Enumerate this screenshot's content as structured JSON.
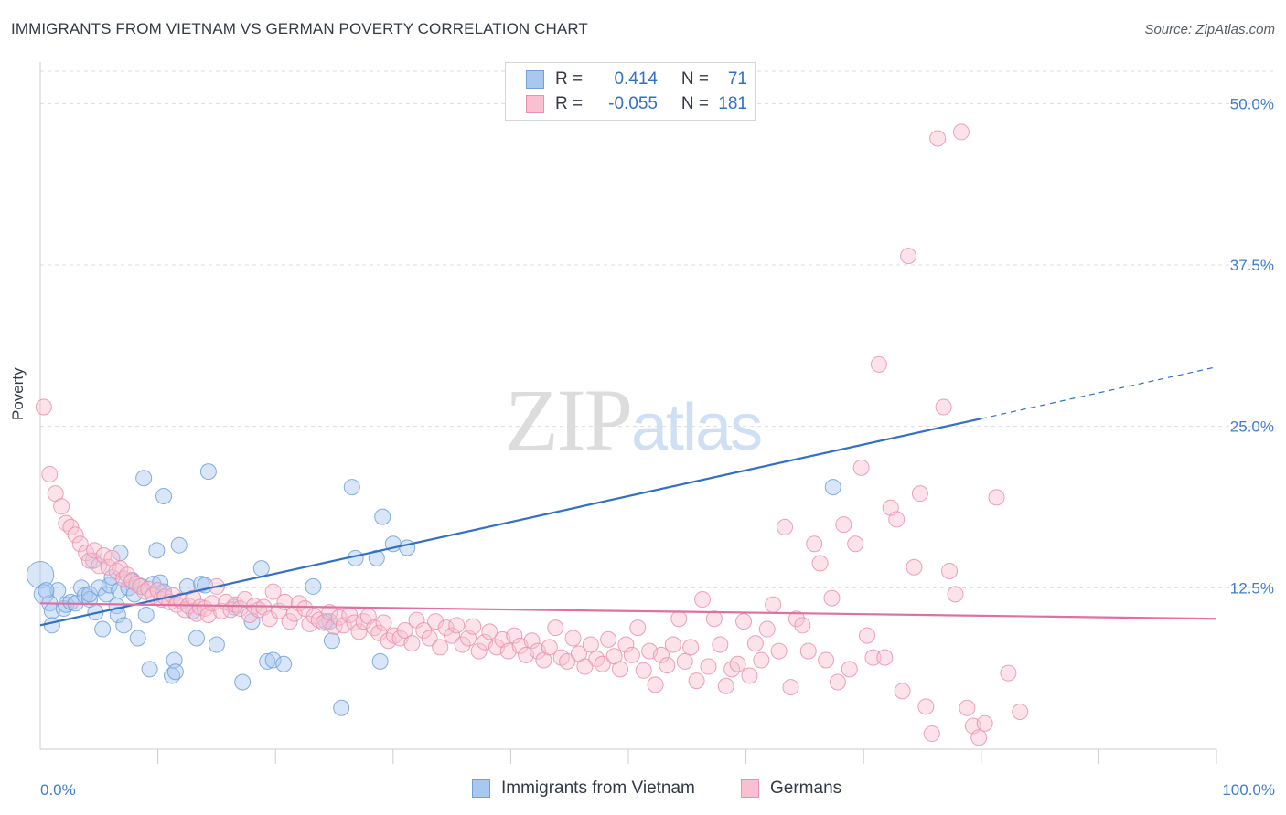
{
  "title": "IMMIGRANTS FROM VIETNAM VS GERMAN POVERTY CORRELATION CHART",
  "source": "Source: ZipAtlas.com",
  "watermark": {
    "zip": "ZIP",
    "atlas": "atlas"
  },
  "legend": {
    "rows": [
      {
        "r_label": "R =",
        "r_value": "0.414",
        "n_label": "N =",
        "n_value": "71",
        "color": "#a8c8f0",
        "border": "#6fa0dc"
      },
      {
        "r_label": "R =",
        "r_value": "-0.055",
        "n_label": "N =",
        "n_value": "181",
        "color": "#f8c0d0",
        "border": "#e890ae"
      }
    ]
  },
  "bottom_legend": [
    {
      "label": "Immigrants from Vietnam",
      "color": "#a8c8f0",
      "border": "#6fa0dc"
    },
    {
      "label": "Germans",
      "color": "#f8c0d0",
      "border": "#e890ae"
    }
  ],
  "chart_data": {
    "type": "scatter",
    "title": "IMMIGRANTS FROM VIETNAM VS GERMAN POVERTY CORRELATION CHART",
    "xlabel": "",
    "ylabel": "Poverty",
    "xlim": [
      0,
      100
    ],
    "ylim": [
      0,
      52.5
    ],
    "x_tick_labels": [
      {
        "value": 0,
        "label": "0.0%"
      },
      {
        "value": 100,
        "label": "100.0%"
      }
    ],
    "y_tick_labels": [
      {
        "value": 12.5,
        "label": "12.5%"
      },
      {
        "value": 25.0,
        "label": "25.0%"
      },
      {
        "value": 37.5,
        "label": "37.5%"
      },
      {
        "value": 50.0,
        "label": "50.0%"
      }
    ],
    "grid": "horizontal dashed",
    "series": [
      {
        "name": "Immigrants from Vietnam",
        "color": "#6fa0dc",
        "fill": "#a8c8f0",
        "trend": {
          "x0": 0,
          "y0": 9.6,
          "x1": 80,
          "y1": 25.6,
          "dashed_to_x": 100,
          "dashed_to_y": 29.6,
          "color": "#3070c8"
        },
        "points": [
          [
            0,
            13.5
          ],
          [
            0.3,
            12.0
          ],
          [
            0.8,
            11.3
          ],
          [
            1.0,
            10.7
          ],
          [
            1.5,
            12.3
          ],
          [
            2.0,
            10.9
          ],
          [
            2.2,
            11.2
          ],
          [
            2.6,
            11.4
          ],
          [
            3.0,
            11.3
          ],
          [
            3.5,
            12.5
          ],
          [
            3.8,
            11.9
          ],
          [
            4.2,
            11.6
          ],
          [
            4.2,
            12.0
          ],
          [
            4.5,
            14.6
          ],
          [
            4.7,
            10.6
          ],
          [
            5.0,
            12.5
          ],
          [
            5.3,
            9.3
          ],
          [
            5.6,
            12.0
          ],
          [
            5.9,
            12.7
          ],
          [
            6.1,
            13.3
          ],
          [
            6.5,
            11.1
          ],
          [
            6.6,
            10.4
          ],
          [
            6.7,
            12.3
          ],
          [
            6.8,
            15.2
          ],
          [
            7.1,
            9.6
          ],
          [
            7.5,
            12.5
          ],
          [
            7.8,
            13.1
          ],
          [
            8.0,
            12.0
          ],
          [
            8.3,
            8.6
          ],
          [
            8.6,
            12.6
          ],
          [
            8.8,
            21.0
          ],
          [
            9.0,
            10.4
          ],
          [
            9.3,
            6.2
          ],
          [
            9.6,
            12.8
          ],
          [
            9.9,
            15.4
          ],
          [
            10.2,
            12.9
          ],
          [
            10.5,
            12.2
          ],
          [
            10.5,
            19.6
          ],
          [
            11.2,
            5.7
          ],
          [
            11.4,
            6.9
          ],
          [
            11.5,
            6.0
          ],
          [
            11.8,
            15.8
          ],
          [
            12.5,
            12.6
          ],
          [
            13.0,
            10.7
          ],
          [
            13.3,
            8.6
          ],
          [
            13.7,
            12.8
          ],
          [
            14.0,
            12.7
          ],
          [
            14.3,
            21.5
          ],
          [
            15.0,
            8.1
          ],
          [
            16.5,
            11.0
          ],
          [
            17.2,
            5.2
          ],
          [
            18.0,
            9.9
          ],
          [
            18.8,
            14.0
          ],
          [
            19.3,
            6.8
          ],
          [
            19.8,
            6.9
          ],
          [
            20.7,
            6.6
          ],
          [
            23.2,
            12.6
          ],
          [
            24.3,
            9.9
          ],
          [
            24.6,
            9.9
          ],
          [
            24.8,
            8.4
          ],
          [
            25.6,
            3.2
          ],
          [
            26.5,
            20.3
          ],
          [
            26.8,
            14.8
          ],
          [
            28.6,
            14.8
          ],
          [
            28.9,
            6.8
          ],
          [
            29.1,
            18.0
          ],
          [
            30.0,
            15.9
          ],
          [
            31.2,
            15.6
          ],
          [
            67.4,
            20.3
          ],
          [
            1.0,
            9.6
          ],
          [
            0.5,
            12.3
          ]
        ],
        "radii": {
          "0": 22,
          "1": 16,
          "default": 13
        }
      },
      {
        "name": "Germans",
        "color": "#e890ae",
        "fill": "#f8c0d0",
        "trend": {
          "x0": 0,
          "y0": 11.3,
          "x1": 100,
          "y1": 10.1,
          "color": "#e070a0"
        },
        "points": [
          [
            0.3,
            26.5
          ],
          [
            0.8,
            21.3
          ],
          [
            1.3,
            19.8
          ],
          [
            1.8,
            18.8
          ],
          [
            2.2,
            17.5
          ],
          [
            2.6,
            17.2
          ],
          [
            3.0,
            16.6
          ],
          [
            3.4,
            15.9
          ],
          [
            3.9,
            15.2
          ],
          [
            4.2,
            14.6
          ],
          [
            4.6,
            15.4
          ],
          [
            5.0,
            14.2
          ],
          [
            5.4,
            15.0
          ],
          [
            5.8,
            14.1
          ],
          [
            6.1,
            14.8
          ],
          [
            6.5,
            13.8
          ],
          [
            6.8,
            14.0
          ],
          [
            7.1,
            13.2
          ],
          [
            7.4,
            13.5
          ],
          [
            7.8,
            13.0
          ],
          [
            8.2,
            12.8
          ],
          [
            8.5,
            12.6
          ],
          [
            8.9,
            12.2
          ],
          [
            9.2,
            12.4
          ],
          [
            9.6,
            11.9
          ],
          [
            10.0,
            12.3
          ],
          [
            10.3,
            11.6
          ],
          [
            10.6,
            11.8
          ],
          [
            11.0,
            11.4
          ],
          [
            11.3,
            11.9
          ],
          [
            11.6,
            11.2
          ],
          [
            12.0,
            11.5
          ],
          [
            12.3,
            10.8
          ],
          [
            12.6,
            11.1
          ],
          [
            13.0,
            11.7
          ],
          [
            13.3,
            10.5
          ],
          [
            13.6,
            11.0
          ],
          [
            14.0,
            10.9
          ],
          [
            14.3,
            10.4
          ],
          [
            14.6,
            11.3
          ],
          [
            15.0,
            12.6
          ],
          [
            15.4,
            10.7
          ],
          [
            15.8,
            11.4
          ],
          [
            16.2,
            10.8
          ],
          [
            16.6,
            11.2
          ],
          [
            17.0,
            10.9
          ],
          [
            17.4,
            11.6
          ],
          [
            17.8,
            10.4
          ],
          [
            18.2,
            11.1
          ],
          [
            18.6,
            10.8
          ],
          [
            19.0,
            11.0
          ],
          [
            19.5,
            10.1
          ],
          [
            19.8,
            12.2
          ],
          [
            20.3,
            10.7
          ],
          [
            20.8,
            11.4
          ],
          [
            21.2,
            9.9
          ],
          [
            21.6,
            10.5
          ],
          [
            22.0,
            11.3
          ],
          [
            22.5,
            10.9
          ],
          [
            22.9,
            9.7
          ],
          [
            23.3,
            10.3
          ],
          [
            23.7,
            10.0
          ],
          [
            24.1,
            9.8
          ],
          [
            24.6,
            10.6
          ],
          [
            25.0,
            9.5
          ],
          [
            25.4,
            10.2
          ],
          [
            25.8,
            9.6
          ],
          [
            26.3,
            10.4
          ],
          [
            26.7,
            9.8
          ],
          [
            27.1,
            9.1
          ],
          [
            27.5,
            9.9
          ],
          [
            27.9,
            10.3
          ],
          [
            28.4,
            9.4
          ],
          [
            28.8,
            9.0
          ],
          [
            29.2,
            9.8
          ],
          [
            29.6,
            8.4
          ],
          [
            30.1,
            8.8
          ],
          [
            30.6,
            8.6
          ],
          [
            31.0,
            9.2
          ],
          [
            31.6,
            8.2
          ],
          [
            32.0,
            10.0
          ],
          [
            32.6,
            9.2
          ],
          [
            33.1,
            8.6
          ],
          [
            33.6,
            9.9
          ],
          [
            34.0,
            7.9
          ],
          [
            34.5,
            9.4
          ],
          [
            35.0,
            8.8
          ],
          [
            35.4,
            9.6
          ],
          [
            35.9,
            8.1
          ],
          [
            36.4,
            8.6
          ],
          [
            36.8,
            9.5
          ],
          [
            37.3,
            7.6
          ],
          [
            37.8,
            8.3
          ],
          [
            38.2,
            9.1
          ],
          [
            38.8,
            7.9
          ],
          [
            39.3,
            8.5
          ],
          [
            39.8,
            7.6
          ],
          [
            40.3,
            8.8
          ],
          [
            40.8,
            8.0
          ],
          [
            41.3,
            7.3
          ],
          [
            41.8,
            8.4
          ],
          [
            42.3,
            7.6
          ],
          [
            42.8,
            6.9
          ],
          [
            43.3,
            7.9
          ],
          [
            43.8,
            9.4
          ],
          [
            44.3,
            7.1
          ],
          [
            44.8,
            6.8
          ],
          [
            45.3,
            8.6
          ],
          [
            45.8,
            7.4
          ],
          [
            46.3,
            6.4
          ],
          [
            46.8,
            8.1
          ],
          [
            47.3,
            7.0
          ],
          [
            47.8,
            6.6
          ],
          [
            48.3,
            8.5
          ],
          [
            48.8,
            7.2
          ],
          [
            49.3,
            6.2
          ],
          [
            49.8,
            8.1
          ],
          [
            50.3,
            7.3
          ],
          [
            50.8,
            9.4
          ],
          [
            51.3,
            6.1
          ],
          [
            51.8,
            7.6
          ],
          [
            52.3,
            5.0
          ],
          [
            52.8,
            7.3
          ],
          [
            53.3,
            6.5
          ],
          [
            53.8,
            8.1
          ],
          [
            54.3,
            10.1
          ],
          [
            54.8,
            6.8
          ],
          [
            55.3,
            7.9
          ],
          [
            55.8,
            5.3
          ],
          [
            56.3,
            11.6
          ],
          [
            56.8,
            6.4
          ],
          [
            57.3,
            10.1
          ],
          [
            57.8,
            8.1
          ],
          [
            58.3,
            4.9
          ],
          [
            58.8,
            6.2
          ],
          [
            59.3,
            6.6
          ],
          [
            59.8,
            9.9
          ],
          [
            60.3,
            5.7
          ],
          [
            60.8,
            8.2
          ],
          [
            61.3,
            6.9
          ],
          [
            61.8,
            9.3
          ],
          [
            62.3,
            11.2
          ],
          [
            62.8,
            7.6
          ],
          [
            63.3,
            17.2
          ],
          [
            63.8,
            4.8
          ],
          [
            64.3,
            10.1
          ],
          [
            64.8,
            9.6
          ],
          [
            65.3,
            7.6
          ],
          [
            65.8,
            15.9
          ],
          [
            66.3,
            14.4
          ],
          [
            66.8,
            6.9
          ],
          [
            67.3,
            11.7
          ],
          [
            67.8,
            5.2
          ],
          [
            68.3,
            17.4
          ],
          [
            68.8,
            6.2
          ],
          [
            69.3,
            15.9
          ],
          [
            69.8,
            21.8
          ],
          [
            70.3,
            8.8
          ],
          [
            70.8,
            7.1
          ],
          [
            71.3,
            29.8
          ],
          [
            71.8,
            7.1
          ],
          [
            72.3,
            18.7
          ],
          [
            72.8,
            17.8
          ],
          [
            73.3,
            4.5
          ],
          [
            73.8,
            38.2
          ],
          [
            74.3,
            14.1
          ],
          [
            74.8,
            19.8
          ],
          [
            75.3,
            3.3
          ],
          [
            75.8,
            1.2
          ],
          [
            76.3,
            47.3
          ],
          [
            76.8,
            26.5
          ],
          [
            77.3,
            13.8
          ],
          [
            77.8,
            12.0
          ],
          [
            78.3,
            47.8
          ],
          [
            78.8,
            3.2
          ],
          [
            79.3,
            1.8
          ],
          [
            79.8,
            0.9
          ],
          [
            80.3,
            2.0
          ],
          [
            81.3,
            19.5
          ],
          [
            82.3,
            5.9
          ],
          [
            83.3,
            2.9
          ]
        ]
      }
    ]
  }
}
